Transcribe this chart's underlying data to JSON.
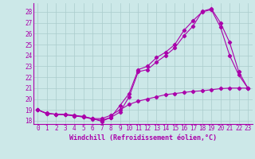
{
  "xlabel": "Windchill (Refroidissement éolien,°C)",
  "bg_color": "#cce8e8",
  "line_color": "#aa00aa",
  "grid_color": "#aacccc",
  "xlim": [
    -0.5,
    23.5
  ],
  "ylim": [
    17.7,
    28.8
  ],
  "yticks": [
    18,
    19,
    20,
    21,
    22,
    23,
    24,
    25,
    26,
    27,
    28
  ],
  "xticks": [
    0,
    1,
    2,
    3,
    4,
    5,
    6,
    7,
    8,
    9,
    10,
    11,
    12,
    13,
    14,
    15,
    16,
    17,
    18,
    19,
    20,
    21,
    22,
    23
  ],
  "line1_x": [
    0,
    1,
    2,
    3,
    4,
    5,
    6,
    7,
    8,
    9,
    10,
    11,
    12,
    13,
    14,
    15,
    16,
    17,
    18,
    19,
    20,
    21,
    22,
    23
  ],
  "line1_y": [
    19.0,
    18.7,
    18.6,
    18.6,
    18.5,
    18.4,
    18.2,
    17.95,
    18.3,
    19.4,
    20.5,
    22.7,
    23.0,
    23.8,
    24.3,
    25.0,
    26.3,
    27.2,
    28.0,
    28.2,
    26.6,
    24.0,
    22.2,
    21.0
  ],
  "line2_x": [
    0,
    1,
    2,
    3,
    4,
    5,
    6,
    7,
    8,
    9,
    10,
    11,
    12,
    13,
    14,
    15,
    16,
    17,
    18,
    19,
    20,
    21,
    22,
    23
  ],
  "line2_y": [
    19.0,
    18.65,
    18.6,
    18.55,
    18.45,
    18.35,
    18.15,
    18.05,
    18.3,
    18.8,
    20.2,
    22.5,
    22.7,
    23.4,
    24.0,
    24.7,
    25.8,
    26.7,
    28.05,
    28.3,
    27.0,
    25.2,
    22.5,
    21.0
  ],
  "line3_x": [
    0,
    1,
    2,
    3,
    4,
    5,
    6,
    7,
    8,
    9,
    10,
    11,
    12,
    13,
    14,
    15,
    16,
    17,
    18,
    19,
    20,
    21,
    22,
    23
  ],
  "line3_y": [
    19.0,
    18.65,
    18.6,
    18.55,
    18.45,
    18.35,
    18.2,
    18.2,
    18.5,
    19.0,
    19.5,
    19.8,
    20.0,
    20.2,
    20.4,
    20.5,
    20.6,
    20.7,
    20.75,
    20.85,
    20.95,
    21.0,
    21.0,
    21.0
  ],
  "xlabel_fontsize": 6,
  "tick_fontsize": 5.5
}
